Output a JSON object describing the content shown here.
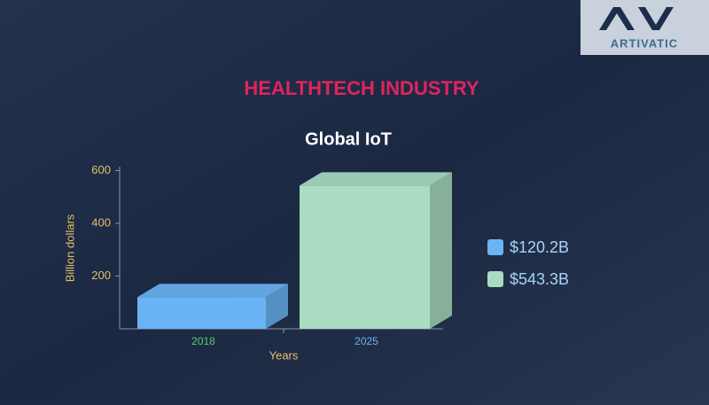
{
  "header": {
    "title": "HEALTHTECH INDUSTRY",
    "logo_text": "ARTIVATIC"
  },
  "chart_data": {
    "type": "bar3d",
    "title": "Global IoT",
    "x_label": "Years",
    "y_label": "Billion dollars",
    "categories": [
      "2018",
      "2025"
    ],
    "values": [
      120.2,
      543.3
    ],
    "value_labels": [
      "$120.2B",
      "$543.3B"
    ],
    "colors": [
      "#6ab4f5",
      "#a9dcc2"
    ],
    "category_label_colors": [
      "#5cc870",
      "#6ab4f5"
    ],
    "ylim": [
      0,
      600
    ],
    "yticks": [
      200,
      400,
      600
    ]
  }
}
